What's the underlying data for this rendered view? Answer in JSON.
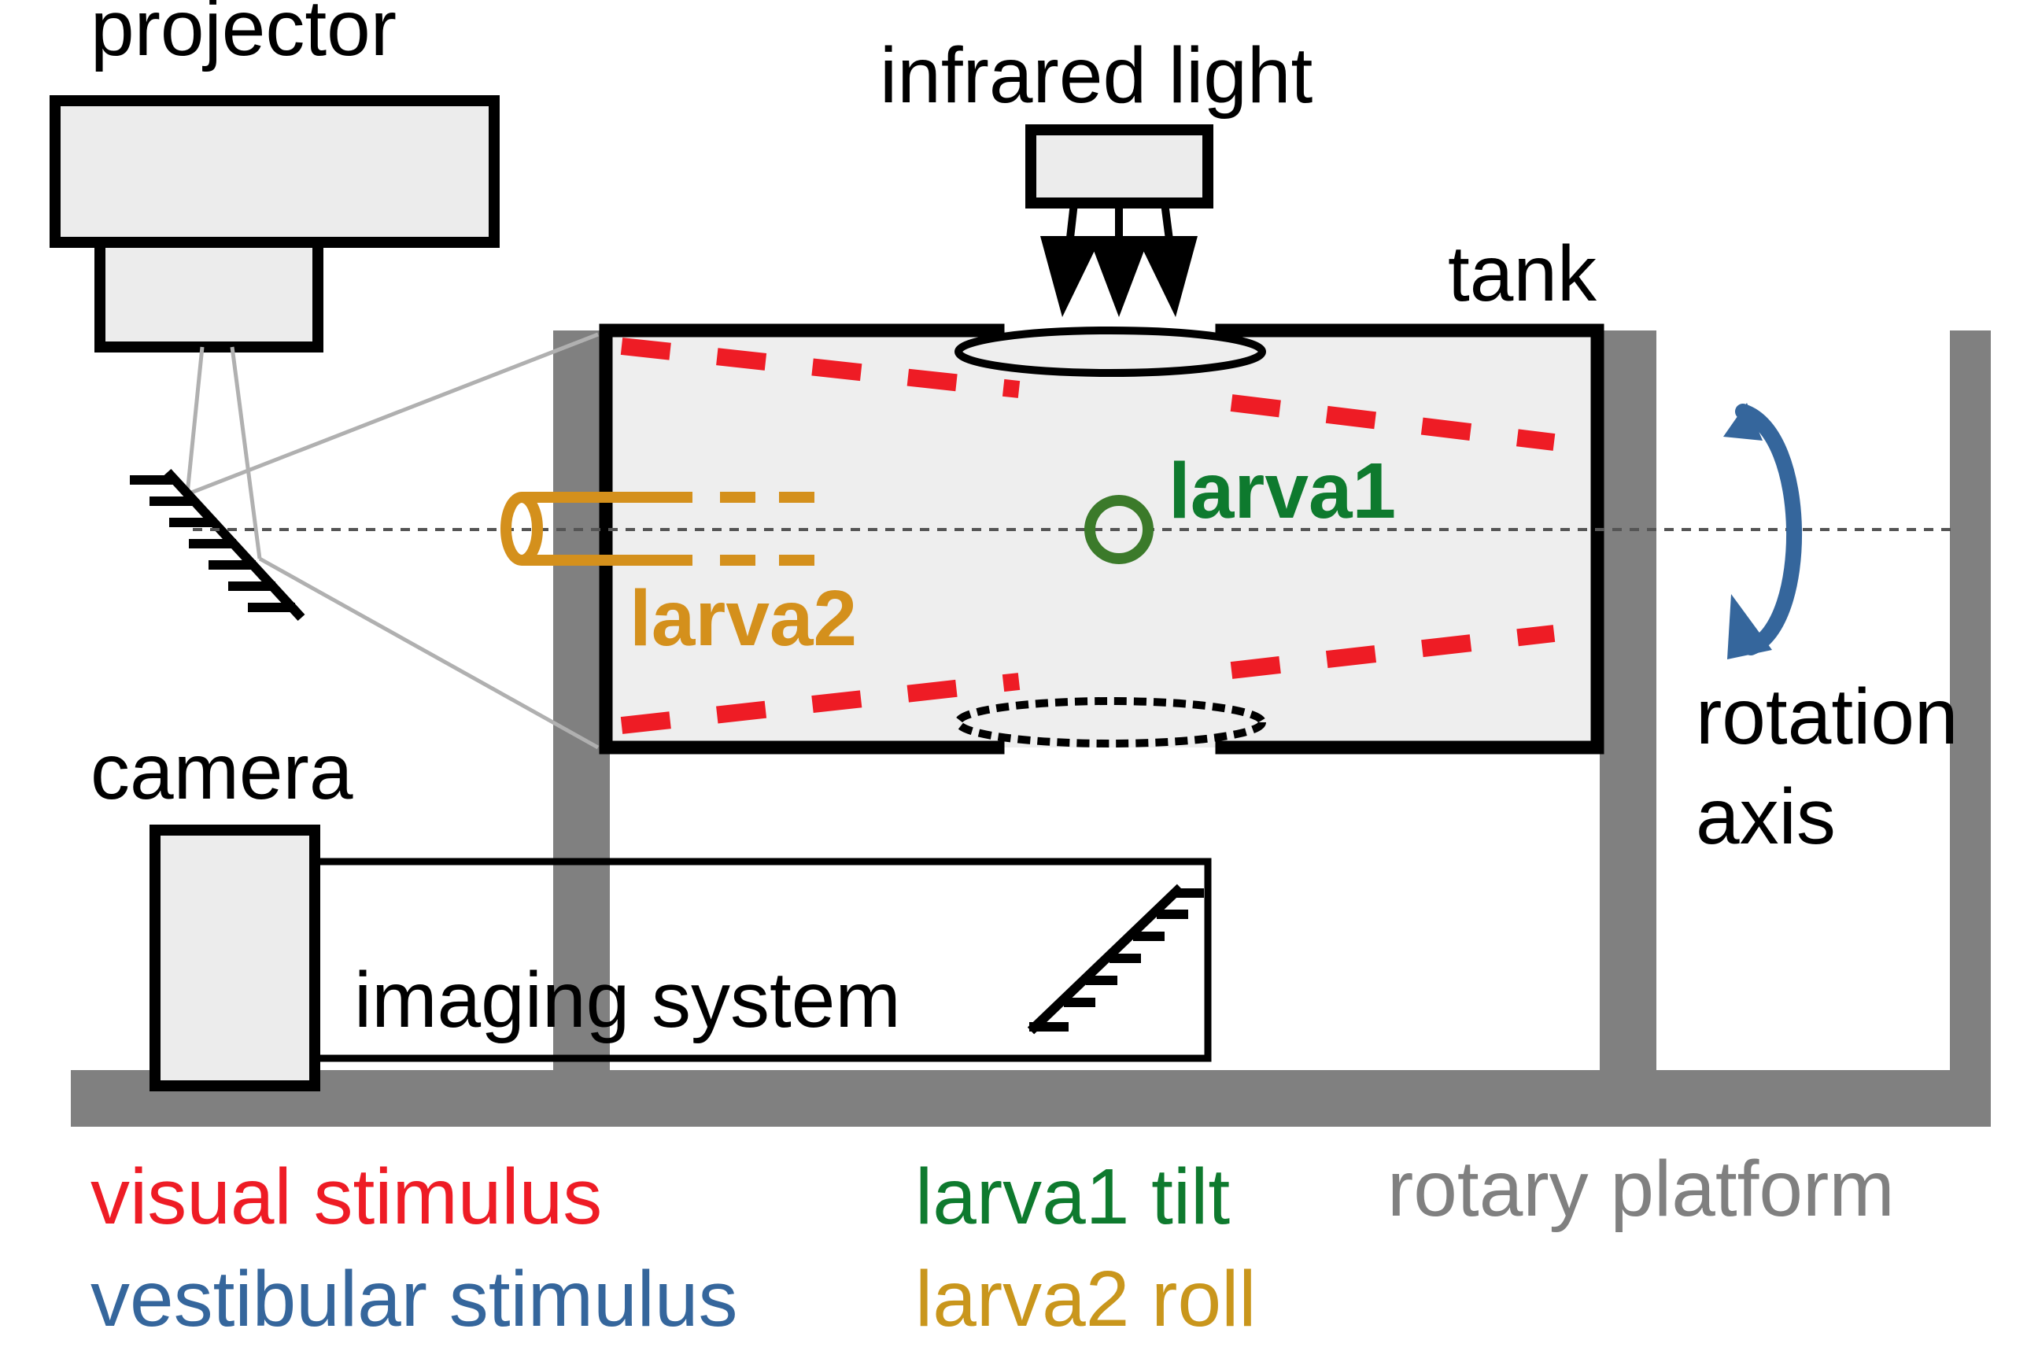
{
  "labels": {
    "projector": "projector",
    "infrared_light": "infrared light",
    "tank": "tank",
    "larva1": "larva1",
    "larva2": "larva2",
    "rotation_axis_line1": "rotation",
    "rotation_axis_line2": "axis",
    "camera": "camera",
    "imaging_system": "imaging system"
  },
  "legend": {
    "visual_stimulus": "visual stimulus",
    "vestibular_stimulus": "vestibular stimulus",
    "larva1_tilt": "larva1 tilt",
    "larva2_roll": "larva2 roll",
    "rotary_platform": "rotary platform"
  },
  "colors": {
    "visual_stimulus": "#ee1c25",
    "vestibular_stimulus": "#35669c",
    "larva1": "#0e7a2e",
    "larva1_ring": "#3b7a2a",
    "larva2": "#d4901c",
    "larva2_legend": "#c9961c",
    "rotary_platform": "#808080",
    "tank_fill": "#eeeeee",
    "device_fill": "#ececec",
    "beam": "#b0b0b0"
  }
}
